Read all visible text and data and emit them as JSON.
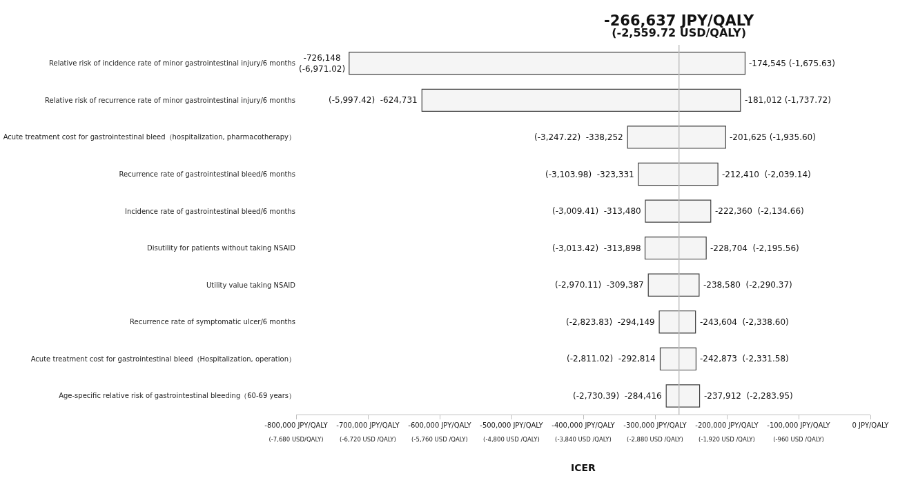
{
  "chart_data": {
    "type": "bar",
    "orientation": "horizontal",
    "xlabel": "ICER",
    "categories": [
      "Relative risk of incidence rate of minor gastrointestinal injury/6 months",
      "Relative risk of recurrence rate of minor gastrointestinal injury/6 months",
      "Acute treatment cost for gastrointestinal bleed（hospitalization, pharmacotherapy）",
      "Recurrence rate of gastrointestinal bleed/6 months",
      "Incidence rate of gastrointestinal bleed/6 months",
      "Disutility for patients without taking NSAID",
      "Utility value taking NSAID",
      "Recurrence rate of symptomatic ulcer/6 months",
      "Acute treatment cost for gastrointestinal bleed（Hospitalization, operation）",
      "Age-specific relative risk of gastrointestinal bleeding（60-69 years）"
    ],
    "base": [
      -726148,
      -624731,
      -338252,
      -323331,
      -313480,
      -313898,
      -309387,
      -294149,
      -292814,
      -284416
    ],
    "values": [
      551603,
      443719,
      136627,
      110921,
      91120,
      85194,
      70807,
      50545,
      49941,
      46504
    ],
    "color": "#f5f5f5",
    "xlim": [
      -800000,
      0
    ],
    "xticks": [
      {
        "value": -800000,
        "label": "-800,000 JPY/QALY"
      },
      {
        "value": -700000,
        "label": "-700,000 JPY/QALY"
      },
      {
        "value": -600000,
        "label": "-600,000 JPY/QALY"
      },
      {
        "value": -500000,
        "label": "-500,000 JPY/QALY"
      },
      {
        "value": -400000,
        "label": "-400,000 JPY/QALY"
      },
      {
        "value": -300000,
        "label": "-300,000 JPY/QALY"
      },
      {
        "value": -200000,
        "label": "-200,000 JPY/QALY"
      },
      {
        "value": -100000,
        "label": "-100,000 JPY/QALY"
      },
      {
        "value": 0,
        "label": "0 JPY/QALY"
      }
    ],
    "x2lim": [
      -7680,
      0
    ],
    "x2ticks": [
      {
        "value": -7680,
        "label": "(-7,680 USD/QALY)"
      },
      {
        "value": -6720,
        "label": "(-6,720 USD /QALY)"
      },
      {
        "value": -5760,
        "label": "(-5,760 USD /QALY)"
      },
      {
        "value": -4800,
        "label": "(-4,800 USD /QALY)"
      },
      {
        "value": -3840,
        "label": "(-3,840 USD /QALY)"
      },
      {
        "value": -2880,
        "label": "(-2,880 USD /QALY)"
      },
      {
        "value": -1920,
        "label": "(-1,920 USD /QALY)"
      },
      {
        "value": -960,
        "label": "(-960 USD /QALY)"
      }
    ],
    "ref_lines": [
      {
        "axis": "x",
        "value": -266637,
        "label": "-266,637 JPY/QALY\n(-2,559.72 USD/QALY)",
        "color": "#bfbfbf"
      }
    ],
    "annotations": [
      {
        "text": "-726,148\n(-6,971.02)",
        "x": -726148,
        "y": "Relative risk of incidence rate of minor gastrointestinal injury/6 months"
      },
      {
        "text": "-174,545 (-1,675.63)",
        "x": -174545,
        "y": "Relative risk of incidence rate of minor gastrointestinal injury/6 months"
      },
      {
        "text": "(-5,997.42)  -624,731",
        "x": -624731,
        "y": "Relative risk of recurrence rate of minor gastrointestinal injury/6 months"
      },
      {
        "text": "-181,012 (-1,737.72)",
        "x": -181012,
        "y": "Relative risk of recurrence rate of minor gastrointestinal injury/6 months"
      },
      {
        "text": "(-3,247.22)  -338,252",
        "x": -338252,
        "y": "Acute treatment cost for gastrointestinal bleed（hospitalization, pharmacotherapy）"
      },
      {
        "text": "-201,625 (-1,935.60)",
        "x": -201625,
        "y": "Acute treatment cost for gastrointestinal bleed（hospitalization, pharmacotherapy）"
      },
      {
        "text": "(-3,103.98)  -323,331",
        "x": -323331,
        "y": "Recurrence rate of gastrointestinal bleed/6 months"
      },
      {
        "text": "-212,410  (-2,039.14)",
        "x": -212410,
        "y": "Recurrence rate of gastrointestinal bleed/6 months"
      },
      {
        "text": "(-3,009.41)  -313,480",
        "x": -313480,
        "y": "Incidence rate of gastrointestinal bleed/6 months"
      },
      {
        "text": "-222,360  (-2,134.66)",
        "x": -222360,
        "y": "Incidence rate of gastrointestinal bleed/6 months"
      },
      {
        "text": "(-3,013.42)  -313,898",
        "x": -313898,
        "y": "Disutility for patients without taking NSAID"
      },
      {
        "text": "-228,704  (-2,195.56)",
        "x": -228704,
        "y": "Disutility for patients without taking NSAID"
      },
      {
        "text": "(-2,970.11)  -309,387",
        "x": -309387,
        "y": "Utility value taking NSAID"
      },
      {
        "text": "-238,580  (-2,290.37)",
        "x": -238580,
        "y": "Utility value taking NSAID"
      },
      {
        "text": "(-2,823.83)  -294,149",
        "x": -294149,
        "y": "Recurrence rate of symptomatic ulcer/6 months"
      },
      {
        "text": "-243,604  (-2,338.60)",
        "x": -243604,
        "y": "Recurrence rate of symptomatic ulcer/6 months"
      },
      {
        "text": "(-2,811.02)  -292,814",
        "x": -292814,
        "y": "Acute treatment cost for gastrointestinal bleed（Hospitalization, operation）"
      },
      {
        "text": "-242,873  (-2,331.58)",
        "x": -242873,
        "y": "Acute treatment cost for gastrointestinal bleed（Hospitalization, operation）"
      },
      {
        "text": "(-2,730.39)  -284,416",
        "x": -284416,
        "y": "Age-specific relative risk of gastrointestinal bleeding（60-69 years）"
      },
      {
        "text": "-237,912  (-2,283.95)",
        "x": -237912,
        "y": "Age-specific relative risk of gastrointestinal bleeding（60-69 years）"
      }
    ]
  }
}
